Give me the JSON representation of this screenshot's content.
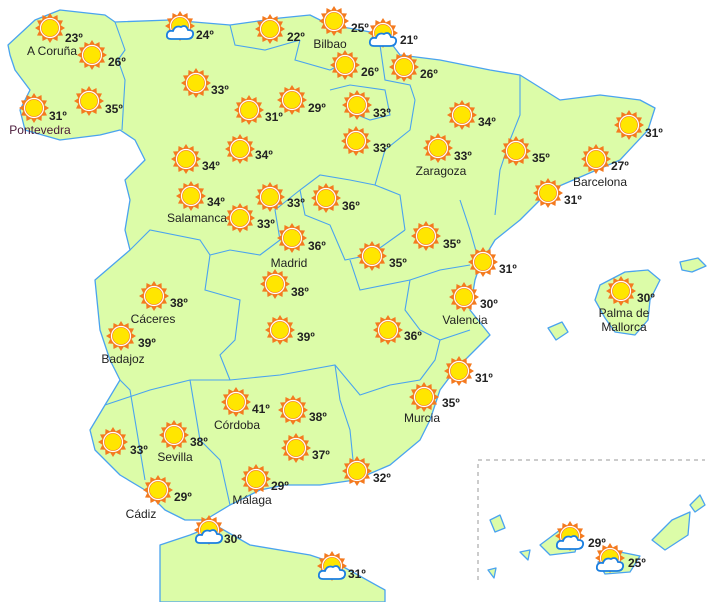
{
  "colors": {
    "land": "#dcfca8",
    "border": "#4aa3ef",
    "sun_rays": "#f47a1f",
    "sun_core": "#ffe600",
    "cloud": "#1a7fe0"
  },
  "forecasts": [
    {
      "temp": "23º",
      "city": "A Coruña",
      "icon": "sun-icon"
    },
    {
      "temp": "26º",
      "city": "",
      "icon": "sun-icon"
    },
    {
      "temp": "31º",
      "city": "Pontevedra",
      "icon": "sun-icon"
    },
    {
      "temp": "35º",
      "city": "",
      "icon": "sun-icon"
    },
    {
      "temp": "24º",
      "city": "",
      "icon": "sun-cloud-icon"
    },
    {
      "temp": "22º",
      "city": "",
      "icon": "sun-icon"
    },
    {
      "temp": "25º",
      "city": "Bilbao",
      "icon": "sun-icon"
    },
    {
      "temp": "21º",
      "city": "",
      "icon": "sun-cloud-icon"
    },
    {
      "temp": "26º",
      "city": "",
      "icon": "sun-icon"
    },
    {
      "temp": "26º",
      "city": "",
      "icon": "sun-icon"
    },
    {
      "temp": "33º",
      "city": "",
      "icon": "sun-icon"
    },
    {
      "temp": "31º",
      "city": "",
      "icon": "sun-icon"
    },
    {
      "temp": "29º",
      "city": "",
      "icon": "sun-icon"
    },
    {
      "temp": "33º",
      "city": "",
      "icon": "sun-icon"
    },
    {
      "temp": "33º",
      "city": "",
      "icon": "sun-icon"
    },
    {
      "temp": "34º",
      "city": "",
      "icon": "sun-icon"
    },
    {
      "temp": "33º",
      "city": "Zaragoza",
      "icon": "sun-icon"
    },
    {
      "temp": "35º",
      "city": "",
      "icon": "sun-icon"
    },
    {
      "temp": "31º",
      "city": "",
      "icon": "sun-icon"
    },
    {
      "temp": "27º",
      "city": "Barcelona",
      "icon": "sun-icon"
    },
    {
      "temp": "31º",
      "city": "",
      "icon": "sun-icon"
    },
    {
      "temp": "34º",
      "city": "",
      "icon": "sun-icon"
    },
    {
      "temp": "34º",
      "city": "",
      "icon": "sun-icon"
    },
    {
      "temp": "34º",
      "city": "Salamanca",
      "icon": "sun-icon"
    },
    {
      "temp": "33º",
      "city": "",
      "icon": "sun-icon"
    },
    {
      "temp": "33º",
      "city": "",
      "icon": "sun-icon"
    },
    {
      "temp": "36º",
      "city": "",
      "icon": "sun-icon"
    },
    {
      "temp": "36º",
      "city": "Madrid",
      "icon": "sun-icon"
    },
    {
      "temp": "35º",
      "city": "",
      "icon": "sun-icon"
    },
    {
      "temp": "35º",
      "city": "",
      "icon": "sun-icon"
    },
    {
      "temp": "31º",
      "city": "",
      "icon": "sun-icon"
    },
    {
      "temp": "30º",
      "city": "Valencia",
      "icon": "sun-icon"
    },
    {
      "temp": "30º",
      "city": "Palma de Mallorca",
      "icon": "sun-icon"
    },
    {
      "temp": "38º",
      "city": "Cáceres",
      "icon": "sun-icon"
    },
    {
      "temp": "39º",
      "city": "Badajoz",
      "icon": "sun-icon"
    },
    {
      "temp": "38º",
      "city": "",
      "icon": "sun-icon"
    },
    {
      "temp": "39º",
      "city": "",
      "icon": "sun-icon"
    },
    {
      "temp": "36º",
      "city": "",
      "icon": "sun-icon"
    },
    {
      "temp": "31º",
      "city": "",
      "icon": "sun-icon"
    },
    {
      "temp": "35º",
      "city": "Murcia",
      "icon": "sun-icon"
    },
    {
      "temp": "41º",
      "city": "Córdoba",
      "icon": "sun-icon"
    },
    {
      "temp": "38º",
      "city": "",
      "icon": "sun-icon"
    },
    {
      "temp": "33º",
      "city": "",
      "icon": "sun-icon"
    },
    {
      "temp": "38º",
      "city": "Sevilla",
      "icon": "sun-icon"
    },
    {
      "temp": "37º",
      "city": "",
      "icon": "sun-icon"
    },
    {
      "temp": "29º",
      "city": "Málaga",
      "icon": "sun-icon"
    },
    {
      "temp": "32º",
      "city": "",
      "icon": "sun-icon"
    },
    {
      "temp": "29º",
      "city": "Cádiz",
      "icon": "sun-icon"
    },
    {
      "temp": "30º",
      "city": "",
      "icon": "sun-cloud-icon"
    },
    {
      "temp": "31º",
      "city": "",
      "icon": "sun-cloud-icon"
    },
    {
      "temp": "29º",
      "city": "",
      "icon": "sun-cloud-icon"
    },
    {
      "temp": "25º",
      "city": "",
      "icon": "sun-cloud-icon"
    }
  ]
}
